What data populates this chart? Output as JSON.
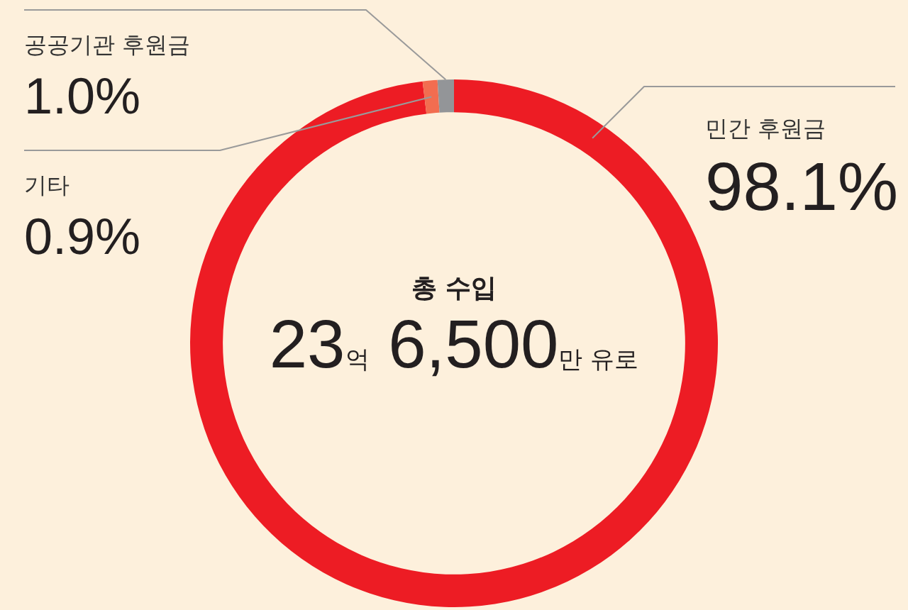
{
  "chart_data": {
    "type": "donut",
    "categories": [
      "민간 후원금",
      "기타",
      "공공기관 후원금"
    ],
    "values": [
      98.1,
      0.9,
      1.0
    ],
    "colors": [
      "#ed1c24",
      "#f26d50",
      "#939598"
    ],
    "value_labels": [
      "98.1%",
      "0.9%",
      "1.0%"
    ],
    "annotations": [
      "총 수입",
      "23억 6,500만 유로"
    ]
  }
}
